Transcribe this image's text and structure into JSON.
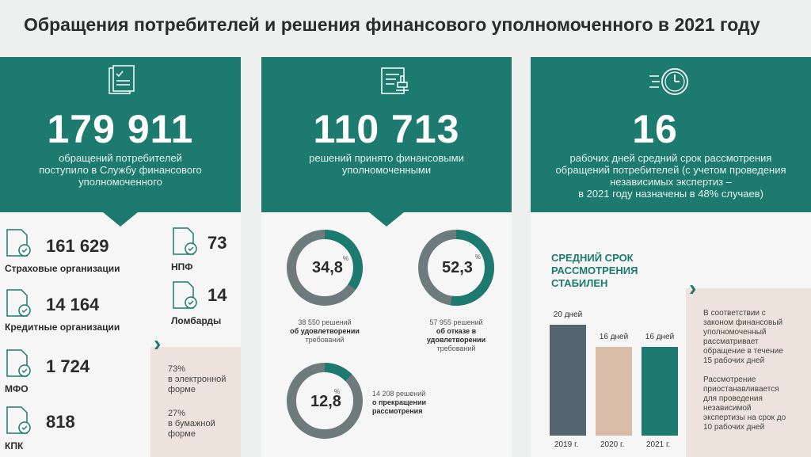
{
  "title": "Обращения потребителей и решения финансового уполномоченного в 2021 году",
  "col1": {
    "big": "179 911",
    "desc": [
      "обращений потребителей",
      "поступило в Службу финансового",
      "уполномоченного"
    ],
    "stats": [
      {
        "value": "161 629",
        "label": "Страховые организации"
      },
      {
        "value": "14 164",
        "label": "Кредитные организации"
      },
      {
        "value": "1 724",
        "label": "МФО"
      },
      {
        "value": "818",
        "label": "КПК"
      },
      {
        "value": "73",
        "label": "НПФ"
      },
      {
        "value": "14",
        "label": "Ломбарды"
      }
    ],
    "chevron": "›",
    "note1": [
      "73%",
      "в электронной",
      "форме"
    ],
    "note2": [
      "27%",
      "в бумажной",
      "форме"
    ]
  },
  "col2": {
    "big": "110 713",
    "desc": [
      "решений принято финансовыми",
      "уполномоченными"
    ],
    "donuts": [
      {
        "value": "34,8",
        "pct_sign": "%",
        "fraction": 0.348,
        "text_count": "38 550 решений",
        "text_bold": [
          "об удовлетворении"
        ],
        "text_tail": "требований"
      },
      {
        "value": "52,3",
        "pct_sign": "%",
        "fraction": 0.523,
        "text_count": "57 955 решений",
        "text_bold": [
          "об отказе в",
          "удовлетворении"
        ],
        "text_tail": "требований"
      },
      {
        "value": "12,8",
        "pct_sign": "%",
        "fraction": 0.128,
        "text_count": "14 208 решений",
        "text_bold": [
          "о прекращении",
          "рассмотрения"
        ],
        "text_tail": ""
      }
    ]
  },
  "col3": {
    "big": "16",
    "desc": [
      "рабочих дней  средний срок рассмотрения",
      "обращений потребителей (с учетом проведения",
      "независимых экспертиз –",
      "в 2021 году назначены в 48% случаев)"
    ],
    "chart_title": [
      "СРЕДНИЙ СРОК",
      "РАССМОТРЕНИЯ",
      "СТАБИЛЕН"
    ],
    "chevron": "›",
    "note1": [
      "В соответствии с",
      "законом финансовый",
      "уполномоченный",
      "рассматривает",
      "обращение в течение",
      "15 рабочих дней"
    ],
    "note2": [
      "Рассмотрение",
      "приостанавливается",
      "для проведения",
      "независимой",
      "экспертизы на срок до",
      "10 рабочих дней"
    ]
  },
  "chart_data": {
    "type": "bar",
    "categories": [
      "2019 г.",
      "2020 г.",
      "2021 г."
    ],
    "values": [
      20,
      16,
      16
    ],
    "value_labels": [
      "20 дней",
      "16 дней",
      "16 дней"
    ],
    "colors": [
      "#556570",
      "#d8bca8",
      "#1d7a6e"
    ],
    "title": "СРЕДНИЙ СРОК РАССМОТРЕНИЯ СТАБИЛЕН"
  },
  "colors": {
    "teal": "#1d7a6e",
    "ring_bg": "#6e7b7d",
    "beige": "#ede3dc"
  }
}
